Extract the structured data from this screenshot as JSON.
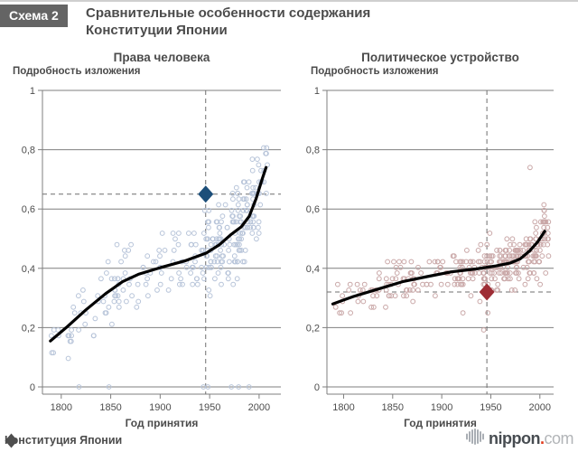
{
  "header": {
    "badge": "Схема 2",
    "title_line1": "Сравнительные особенности содержания",
    "title_line2": "Конституции Японии"
  },
  "footer": {
    "legend_label": "Конституция Японии",
    "legend_marker_color": "#4f4f4f",
    "logo": {
      "word": "nippon",
      "dot": ".",
      "tld": "com",
      "word_color": "#474c51",
      "dot_color": "#e23a1c",
      "tld_color": "#b2b5b8",
      "icon_color": "#a9aeb4"
    }
  },
  "chart_data": [
    {
      "type": "scatter",
      "title": "Права человека",
      "ylabel": "Подробность изложения",
      "xlabel": "Год принятия",
      "x_ticks": [
        1800,
        1850,
        1900,
        1950,
        2000
      ],
      "x_tick_labels": [
        "1800",
        "1850",
        "1900",
        "1950",
        "2000"
      ],
      "y_ticks": [
        0,
        0.2,
        0.4,
        0.6,
        0.8,
        1
      ],
      "y_tick_labels": [
        "0",
        "0,2",
        "0,4",
        "0,6",
        "0,8",
        "1"
      ],
      "xlim": [
        1781,
        2022
      ],
      "ylim": [
        0,
        1
      ],
      "grid": true,
      "legend_position": "bottom-left",
      "point_color": "#b7c4d9",
      "trend_color": "#000000",
      "guide_color": "#6f6f6f",
      "axis_color": "#7f7f7f",
      "highlight": {
        "series": "Конституция Японии",
        "x": 1946,
        "y": 0.65,
        "color": "#1c4e79"
      },
      "guides": {
        "dashed_x": 1946,
        "dashed_y": 0.65
      },
      "trend": [
        [
          1789,
          0.155
        ],
        [
          1805,
          0.2
        ],
        [
          1825,
          0.26
        ],
        [
          1845,
          0.315
        ],
        [
          1862,
          0.355
        ],
        [
          1878,
          0.38
        ],
        [
          1900,
          0.402
        ],
        [
          1925,
          0.425
        ],
        [
          1947,
          0.452
        ],
        [
          1960,
          0.48
        ],
        [
          1972,
          0.515
        ],
        [
          1982,
          0.54
        ],
        [
          1990,
          0.575
        ],
        [
          1997,
          0.635
        ],
        [
          2003,
          0.7
        ],
        [
          2007,
          0.74
        ]
      ],
      "scatter_note": "~300 country-constitution points, positions estimated from pixels",
      "scatter_gen": {
        "seed": 20,
        "n": 295,
        "eras": [
          [
            1789,
            1852,
            0.12
          ],
          [
            1852,
            1912,
            0.17
          ],
          [
            1912,
            1946,
            0.12
          ],
          [
            1946,
            2009,
            0.59
          ]
        ],
        "spread_early": 0.15,
        "spread_late": 0.22,
        "split_year": 1946,
        "clamp": [
          0,
          0.9
        ],
        "quant": 0.0192,
        "zero_frac": 0.035,
        "extra": []
      }
    },
    {
      "type": "scatter",
      "title": "Политическое устройство",
      "ylabel": "Подробность изложения",
      "xlabel": "Год принятия",
      "x_ticks": [
        1800,
        1850,
        1900,
        1950,
        2000
      ],
      "x_tick_labels": [
        "1800",
        "1850",
        "1900",
        "1950",
        "2000"
      ],
      "y_ticks": [
        0,
        0.2,
        0.4,
        0.6,
        0.8,
        1
      ],
      "y_tick_labels": [
        "0",
        "0,2",
        "0,4",
        "0,6",
        "0,8",
        "1"
      ],
      "xlim": [
        1783,
        2014
      ],
      "ylim": [
        0,
        1
      ],
      "grid": true,
      "legend_position": "bottom-left",
      "point_color": "#c9a7a7",
      "trend_color": "#000000",
      "guide_color": "#6f6f6f",
      "axis_color": "#7f7f7f",
      "highlight": {
        "series": "Конституция Японии",
        "x": 1946,
        "y": 0.32,
        "color": "#9e2d35"
      },
      "guides": {
        "dashed_x": 1946,
        "dashed_y": 0.32
      },
      "trend": [
        [
          1789,
          0.28
        ],
        [
          1810,
          0.305
        ],
        [
          1835,
          0.33
        ],
        [
          1860,
          0.355
        ],
        [
          1885,
          0.372
        ],
        [
          1910,
          0.388
        ],
        [
          1935,
          0.398
        ],
        [
          1955,
          0.408
        ],
        [
          1970,
          0.418
        ],
        [
          1980,
          0.432
        ],
        [
          1990,
          0.46
        ],
        [
          1998,
          0.49
        ],
        [
          2005,
          0.525
        ]
      ],
      "scatter_note": "~330 country-constitution points, positions estimated from pixels",
      "scatter_gen": {
        "seed": 77,
        "n": 330,
        "eras": [
          [
            1789,
            1852,
            0.13
          ],
          [
            1852,
            1912,
            0.18
          ],
          [
            1912,
            1946,
            0.13
          ],
          [
            1946,
            2009,
            0.56
          ]
        ],
        "spread_early": 0.1,
        "spread_late": 0.13,
        "split_year": 1946,
        "clamp": [
          0.03,
          0.66
        ],
        "quant": 0.0192,
        "zero_frac": 0,
        "tail_frac": 0.07,
        "tail_drop": 0.25,
        "extra": [
          [
            1990,
            0.74
          ]
        ]
      }
    }
  ]
}
